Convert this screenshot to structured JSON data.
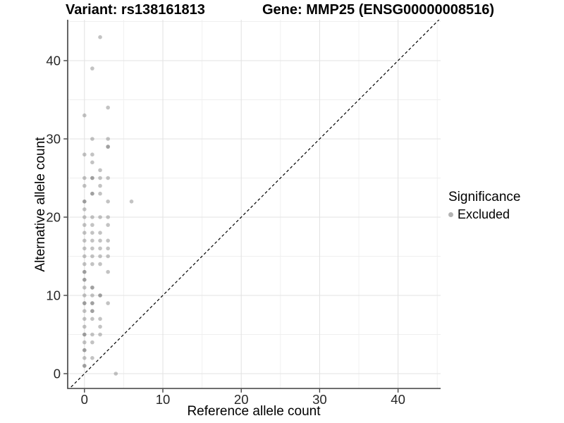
{
  "header": {
    "variant_title": "Variant: rs138161813",
    "gene_title": "Gene: MMP25 (ENSG00000008516)"
  },
  "legend": {
    "title": "Significance",
    "items": [
      {
        "label": "Excluded",
        "key_color": "#b3b3b3"
      }
    ]
  },
  "chart_data": {
    "type": "scatter",
    "xlabel": "Reference allele count",
    "ylabel": "Alternative allele count",
    "xlim": [
      -2.1,
      46.0
    ],
    "ylim": [
      -2.1,
      45.2
    ],
    "x_ticks": [
      0,
      10,
      20,
      30,
      40
    ],
    "y_ticks": [
      0,
      10,
      20,
      30,
      40
    ],
    "x_minor_ticks": [
      5,
      15,
      25,
      35,
      45
    ],
    "y_minor_ticks": [
      5,
      15,
      25,
      35,
      45
    ],
    "grid": true,
    "colors": {
      "point": "#707070",
      "major_grid": "#e3e3e3",
      "minor_grid": "#efefef",
      "axis_line": "#3f3f3f",
      "tick_mark": "#333333",
      "tick_label": "#262626",
      "identity_line": "#000000"
    },
    "point_opacity": 0.42,
    "point_radius": 2.8,
    "identity_line": {
      "slope": 1,
      "intercept": 0,
      "style": "dashed"
    },
    "series": [
      {
        "name": "Excluded",
        "points": [
          [
            2,
            43
          ],
          [
            1,
            39
          ],
          [
            3,
            34
          ],
          [
            0,
            33
          ],
          [
            1,
            30
          ],
          [
            3,
            30
          ],
          [
            3,
            29,
            2
          ],
          [
            0,
            28
          ],
          [
            1,
            28
          ],
          [
            1,
            27
          ],
          [
            2,
            26
          ],
          [
            0,
            25
          ],
          [
            1,
            25,
            2
          ],
          [
            2,
            25
          ],
          [
            3,
            25
          ],
          [
            0,
            24
          ],
          [
            2,
            24
          ],
          [
            1,
            23,
            2
          ],
          [
            2,
            23
          ],
          [
            0,
            22,
            2
          ],
          [
            3,
            22
          ],
          [
            6,
            22
          ],
          [
            0,
            21
          ],
          [
            0,
            20
          ],
          [
            1,
            20
          ],
          [
            2,
            20
          ],
          [
            3,
            20
          ],
          [
            0,
            19
          ],
          [
            1,
            19
          ],
          [
            3,
            19
          ],
          [
            0,
            18
          ],
          [
            1,
            18
          ],
          [
            2,
            18
          ],
          [
            0,
            17
          ],
          [
            1,
            17
          ],
          [
            2,
            17
          ],
          [
            3,
            17
          ],
          [
            0,
            16
          ],
          [
            1,
            16
          ],
          [
            2,
            16
          ],
          [
            3,
            16
          ],
          [
            0,
            15
          ],
          [
            1,
            15
          ],
          [
            2,
            15
          ],
          [
            3,
            15
          ],
          [
            0,
            14
          ],
          [
            1,
            14
          ],
          [
            2,
            14
          ],
          [
            0,
            13,
            2
          ],
          [
            3,
            13
          ],
          [
            0,
            12,
            2
          ],
          [
            0,
            11
          ],
          [
            1,
            11,
            2
          ],
          [
            0,
            10
          ],
          [
            1,
            10
          ],
          [
            2,
            10,
            2
          ],
          [
            0,
            9,
            2
          ],
          [
            1,
            9,
            2
          ],
          [
            3,
            9
          ],
          [
            0,
            8
          ],
          [
            1,
            8,
            2
          ],
          [
            0,
            7
          ],
          [
            1,
            7
          ],
          [
            2,
            7
          ],
          [
            0,
            6
          ],
          [
            2,
            6
          ],
          [
            0,
            5,
            2
          ],
          [
            1,
            5
          ],
          [
            2,
            5
          ],
          [
            0,
            4
          ],
          [
            1,
            4
          ],
          [
            0,
            3,
            2
          ],
          [
            0,
            2
          ],
          [
            1,
            2
          ],
          [
            0,
            1,
            2
          ],
          [
            4,
            0
          ]
        ]
      }
    ]
  }
}
